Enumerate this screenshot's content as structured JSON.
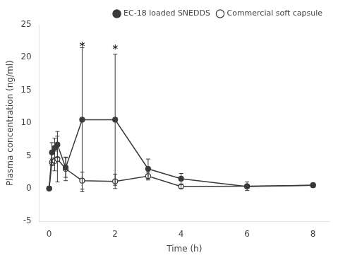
{
  "chart_data": {
    "type": "line",
    "xlabel": "Time (h)",
    "ylabel": "Plasma concentration (ng/ml)",
    "x": [
      0,
      0.083,
      0.167,
      0.25,
      0.5,
      1,
      2,
      3,
      4,
      6,
      8
    ],
    "series": [
      {
        "name": "EC-18 loaded SNEDDS",
        "color": "#3a3a3a",
        "marker": "filled circle",
        "line_style": "solid",
        "values": [
          0,
          5.5,
          6.2,
          6.7,
          3.2,
          10.5,
          10.5,
          3.0,
          1.5,
          0.3,
          0.5
        ],
        "errors": [
          0,
          1.5,
          1.5,
          2.0,
          1.5,
          11.0,
          10.0,
          1.5,
          0.8,
          0.15,
          0.2
        ]
      },
      {
        "name": "Commercial soft capsule",
        "color": "#3a3a3a",
        "marker": "open circle",
        "line_style": "solid",
        "values": [
          0,
          4.0,
          4.2,
          4.5,
          3.0,
          1.2,
          1.1,
          1.9,
          0.3,
          0.35,
          0.5
        ],
        "errors": [
          0,
          0.5,
          1.5,
          3.5,
          1.8,
          1.3,
          1.1,
          0.6,
          0.3,
          0.65,
          0.2
        ]
      }
    ],
    "annotations": [
      {
        "text": "*",
        "x": 1,
        "y": 22.0
      },
      {
        "text": "*",
        "x": 2,
        "y": 21.5
      }
    ],
    "xlim": [
      -0.3,
      8.5
    ],
    "xticks": [
      0,
      2,
      4,
      6,
      8
    ],
    "ylim": [
      -5,
      25
    ],
    "yticks": [
      -5,
      0,
      5,
      10,
      15,
      20,
      25
    ],
    "grid": false,
    "legend": "upper right"
  }
}
